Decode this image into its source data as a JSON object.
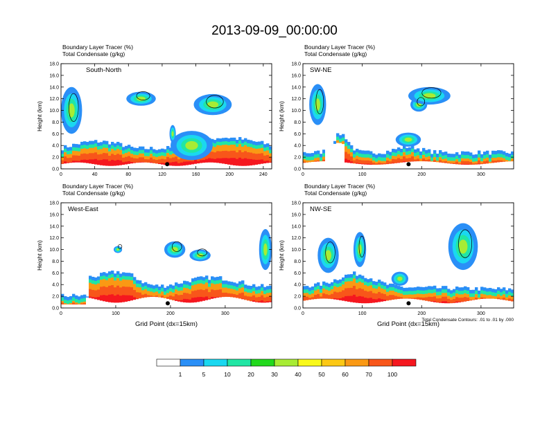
{
  "title": "2013-09-09_00:00:00",
  "colorbar": {
    "colors": [
      "#ffffff",
      "#2a8ff7",
      "#1ad8f0",
      "#21e6a4",
      "#22d91d",
      "#a8ec34",
      "#f9f91a",
      "#fcc814",
      "#fa9914",
      "#f8561a",
      "#f5171f"
    ],
    "labels": [
      "1",
      "5",
      "10",
      "20",
      "30",
      "40",
      "50",
      "60",
      "70",
      "100"
    ]
  },
  "chart_data": [
    {
      "type": "heatmap",
      "panel": "South-North",
      "title_lines": [
        "Boundary Layer Tracer   (%)",
        "Total Condensate   (g/kg)"
      ],
      "ylabel": "Height (km)",
      "xlabel": "",
      "xlim": [
        0,
        250
      ],
      "ylim": [
        0,
        18
      ],
      "x_ticks": [
        "0",
        "40",
        "80",
        "120",
        "160",
        "200",
        "240"
      ],
      "x_tick_values": [
        0,
        40,
        80,
        120,
        160,
        200,
        240
      ],
      "y_ticks": [
        "0.0",
        "2.0",
        "4.0",
        "6.0",
        "8.0",
        "10.0",
        "12.0",
        "14.0",
        "16.0",
        "18.0"
      ],
      "y_tick_values": [
        0,
        2,
        4,
        6,
        8,
        10,
        12,
        14,
        16,
        18
      ],
      "marker_x": 126,
      "footnote": ""
    },
    {
      "type": "heatmap",
      "panel": "SW-NE",
      "title_lines": [
        "Boundary Layer Tracer   (%)",
        "Total Condensate   (g/kg)"
      ],
      "ylabel": "Height (km)",
      "xlabel": "",
      "xlim": [
        0,
        355
      ],
      "ylim": [
        0,
        18
      ],
      "x_ticks": [
        "0",
        "100",
        "200",
        "300"
      ],
      "x_tick_values": [
        0,
        100,
        200,
        300
      ],
      "y_ticks": [
        "0.0",
        "2.0",
        "4.0",
        "6.0",
        "8.0",
        "10.0",
        "12.0",
        "14.0",
        "16.0",
        "18.0"
      ],
      "y_tick_values": [
        0,
        2,
        4,
        6,
        8,
        10,
        12,
        14,
        16,
        18
      ],
      "marker_x": 178,
      "footnote": ""
    },
    {
      "type": "heatmap",
      "panel": "West-East",
      "title_lines": [
        "Boundary Layer Tracer   (%)",
        "Total Condensate   (g/kg)"
      ],
      "ylabel": "Height (km)",
      "xlabel": "Grid Point (dx=15km)",
      "xlim": [
        0,
        385
      ],
      "ylim": [
        0,
        18
      ],
      "x_ticks": [
        "0",
        "100",
        "200",
        "300"
      ],
      "x_tick_values": [
        0,
        100,
        200,
        300
      ],
      "y_ticks": [
        "0.0",
        "2.0",
        "4.0",
        "6.0",
        "8.0",
        "10.0",
        "12.0",
        "14.0",
        "16.0",
        "18.0"
      ],
      "y_tick_values": [
        0,
        2,
        4,
        6,
        8,
        10,
        12,
        14,
        16,
        18
      ],
      "marker_x": 195,
      "footnote": ""
    },
    {
      "type": "heatmap",
      "panel": "NW-SE",
      "title_lines": [
        "Boundary Layer Tracer   (%)",
        "Total Condensate   (g/kg)"
      ],
      "ylabel": "Height (km)",
      "xlabel": "Grid Point (dx=15km)",
      "xlim": [
        0,
        355
      ],
      "ylim": [
        0,
        18
      ],
      "x_ticks": [
        "0",
        "100",
        "200",
        "300"
      ],
      "x_tick_values": [
        0,
        100,
        200,
        300
      ],
      "y_ticks": [
        "0.0",
        "2.0",
        "4.0",
        "6.0",
        "8.0",
        "10.0",
        "12.0",
        "14.0",
        "16.0",
        "18.0"
      ],
      "y_tick_values": [
        0,
        2,
        4,
        6,
        8,
        10,
        12,
        14,
        16,
        18
      ],
      "marker_x": 178,
      "footnote": "Total Condensate Contours: .01 to .01 by .000"
    }
  ]
}
